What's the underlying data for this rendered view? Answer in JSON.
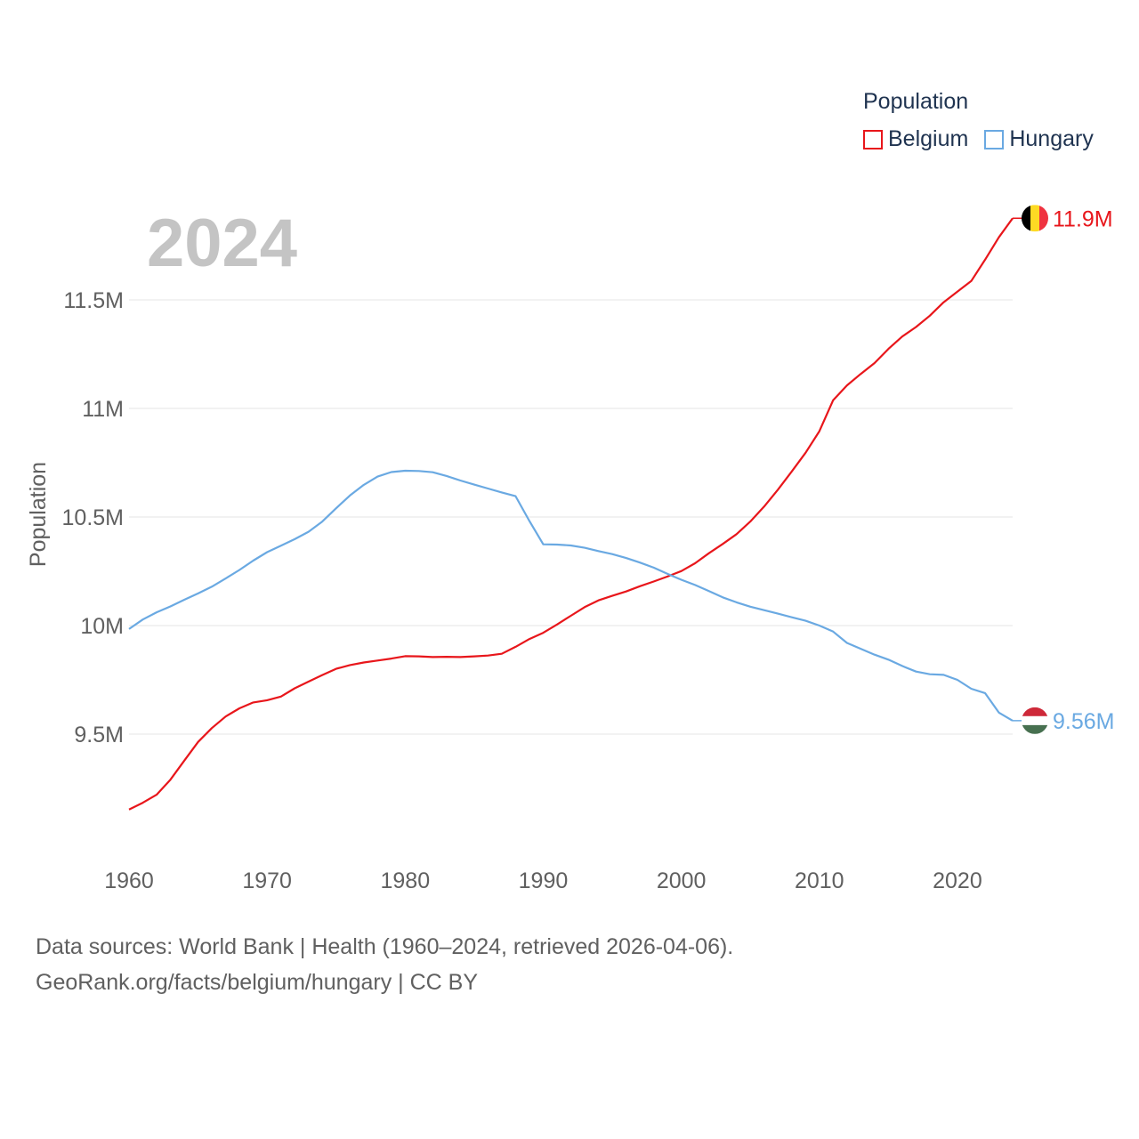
{
  "legend": {
    "title": "Population",
    "items": [
      {
        "name": "Belgium",
        "color": "#e8161b"
      },
      {
        "name": "Hungary",
        "color": "#6aa9e2"
      }
    ]
  },
  "year_label": "2024",
  "footer": {
    "line1": "Data sources: World Bank | Health (1960–2024, retrieved 2026-04-06).",
    "line2": "GeoRank.org/facts/belgium/hungary | CC BY"
  },
  "chart_data": {
    "type": "line",
    "title": "",
    "xlabel": "",
    "ylabel": "Population",
    "xlim": [
      1960,
      2024
    ],
    "ylim": [
      9.16,
      11.92
    ],
    "x_ticks": [
      1960,
      1970,
      1980,
      1990,
      2000,
      2010,
      2020
    ],
    "y_ticks": [
      {
        "value": 9.5,
        "label": "9.5M"
      },
      {
        "value": 10,
        "label": "10M"
      },
      {
        "value": 10.5,
        "label": "10.5M"
      },
      {
        "value": 11,
        "label": "11M"
      },
      {
        "value": 11.5,
        "label": "11.5M"
      }
    ],
    "grid": true,
    "x": [
      1960,
      1961,
      1962,
      1963,
      1964,
      1965,
      1966,
      1967,
      1968,
      1969,
      1970,
      1971,
      1972,
      1973,
      1974,
      1975,
      1976,
      1977,
      1978,
      1979,
      1980,
      1981,
      1982,
      1983,
      1984,
      1985,
      1986,
      1987,
      1988,
      1989,
      1990,
      1991,
      1992,
      1993,
      1994,
      1995,
      1996,
      1997,
      1998,
      1999,
      2000,
      2001,
      2002,
      2003,
      2004,
      2005,
      2006,
      2007,
      2008,
      2009,
      2010,
      2011,
      2012,
      2013,
      2014,
      2015,
      2016,
      2017,
      2018,
      2019,
      2020,
      2021,
      2022,
      2023,
      2024
    ],
    "series": [
      {
        "name": "Belgium",
        "color": "#e8161b",
        "end_label": "11.9M",
        "values": [
          9.153,
          9.184,
          9.221,
          9.29,
          9.378,
          9.464,
          9.528,
          9.581,
          9.619,
          9.646,
          9.656,
          9.673,
          9.711,
          9.742,
          9.772,
          9.801,
          9.818,
          9.83,
          9.839,
          9.848,
          9.859,
          9.858,
          9.855,
          9.856,
          9.855,
          9.858,
          9.862,
          9.87,
          9.902,
          9.938,
          9.967,
          10.005,
          10.045,
          10.085,
          10.116,
          10.137,
          10.157,
          10.181,
          10.203,
          10.226,
          10.251,
          10.287,
          10.333,
          10.376,
          10.421,
          10.479,
          10.548,
          10.626,
          10.71,
          10.796,
          10.895,
          11.038,
          11.106,
          11.159,
          11.209,
          11.274,
          11.331,
          11.375,
          11.427,
          11.489,
          11.538,
          11.587,
          11.685,
          11.788,
          11.876
        ]
      },
      {
        "name": "Hungary",
        "color": "#6aa9e2",
        "end_label": "9.56M",
        "values": [
          9.984,
          10.028,
          10.061,
          10.088,
          10.119,
          10.148,
          10.179,
          10.217,
          10.256,
          10.299,
          10.338,
          10.368,
          10.398,
          10.432,
          10.479,
          10.54,
          10.599,
          10.648,
          10.686,
          10.707,
          10.713,
          10.712,
          10.706,
          10.689,
          10.668,
          10.649,
          10.631,
          10.613,
          10.596,
          10.481,
          10.374,
          10.373,
          10.369,
          10.358,
          10.343,
          10.329,
          10.311,
          10.29,
          10.267,
          10.238,
          10.211,
          10.187,
          10.159,
          10.13,
          10.107,
          10.087,
          10.071,
          10.055,
          10.038,
          10.022,
          10.0,
          9.972,
          9.92,
          9.893,
          9.866,
          9.843,
          9.814,
          9.788,
          9.776,
          9.773,
          9.75,
          9.709,
          9.689,
          9.599,
          9.562
        ]
      }
    ]
  }
}
